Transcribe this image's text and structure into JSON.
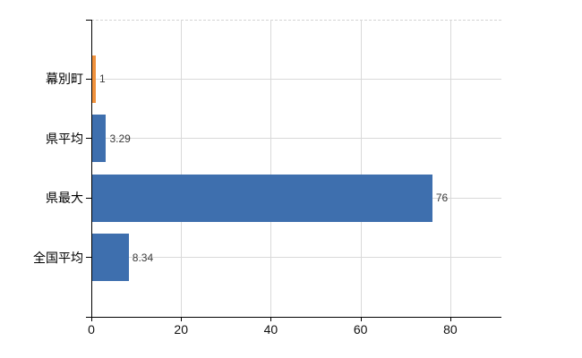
{
  "chart_data": {
    "type": "bar",
    "orientation": "horizontal",
    "title": "",
    "xlabel": "",
    "ylabel": "",
    "categories": [
      "幕別町",
      "県平均",
      "県最大",
      "全国平均"
    ],
    "values": [
      1,
      3.29,
      76,
      8.34
    ],
    "value_labels": [
      "1",
      "3.29",
      "76",
      "8.34"
    ],
    "bar_colors": [
      "#f0913c",
      "#3e6fae",
      "#3e6fae",
      "#3e6fae"
    ],
    "x_ticks": [
      0,
      20,
      40,
      60,
      80
    ],
    "x_tick_labels": [
      "0",
      "20",
      "40",
      "60",
      "80"
    ],
    "xlim": [
      0,
      91.4
    ],
    "grid": true,
    "grid_top_border": "dashed",
    "legend": null
  },
  "colors": {
    "bar_blue": "#3e6fae",
    "bar_orange": "#f0913c",
    "gridline": "#d9d9d9",
    "dashed_border": "#d3d3d3",
    "axis": "#000000",
    "value_label_text": "#3a3a3a",
    "tick_label_text": "#111111",
    "background": "#ffffff"
  }
}
